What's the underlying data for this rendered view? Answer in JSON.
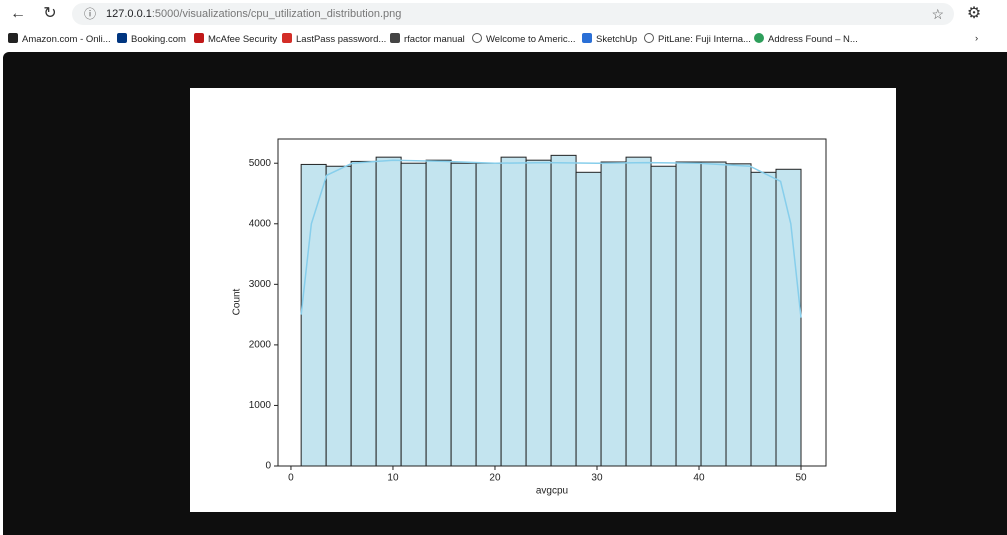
{
  "browser": {
    "url_host": "127.0.0.1",
    "url_path": ":5000/visualizations/cpu_utilization_distribution.png",
    "bookmarks": [
      "Amazon.com - Onli...",
      "Booking.com",
      "McAfee Security",
      "LastPass password...",
      "rfactor manual",
      "Welcome to Americ...",
      "SketchUp",
      "PitLane: Fuji Interna...",
      "Address Found – N..."
    ]
  },
  "chart_data": {
    "type": "histogram",
    "x_label": "avgcpu",
    "y_label": "Count",
    "bins": [
      1,
      3.45,
      5.9,
      8.35,
      10.8,
      13.25,
      15.7,
      18.15,
      20.6,
      23.05,
      25.5,
      27.95,
      30.4,
      32.85,
      35.3,
      37.75,
      40.2,
      42.65,
      45.1,
      47.55,
      50
    ],
    "values": [
      4980,
      4950,
      5030,
      5100,
      5000,
      5050,
      5000,
      5000,
      5100,
      5050,
      5130,
      4850,
      5020,
      5100,
      4950,
      5020,
      5020,
      4990,
      4850,
      4900
    ],
    "color": "#c3e4ef",
    "edge_color": "#222222",
    "kde": {
      "color": "#87ceeb",
      "x": [
        1,
        2,
        3.5,
        6,
        10,
        15,
        20,
        25,
        30,
        35,
        40,
        45,
        48,
        49,
        50
      ],
      "values": [
        2500,
        4000,
        4800,
        5000,
        5050,
        5030,
        5000,
        5010,
        5000,
        5010,
        5000,
        4950,
        4700,
        4000,
        2450
      ]
    },
    "xlim": [
      -1.27,
      52.45
    ],
    "ylim": [
      0,
      5400
    ],
    "xticks": [
      0,
      10,
      20,
      30,
      40,
      50
    ],
    "yticks": [
      0,
      1000,
      2000,
      3000,
      4000,
      5000
    ]
  }
}
